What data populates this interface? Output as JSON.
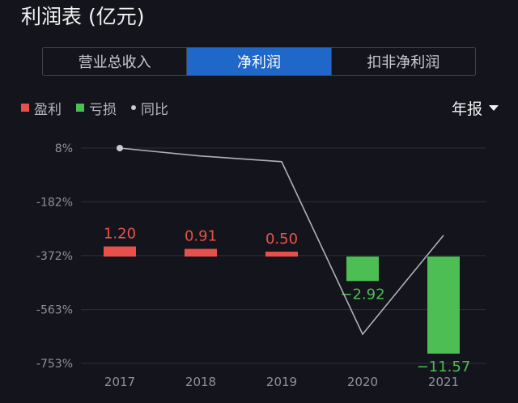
{
  "header": {
    "title": "利润表 (亿元)"
  },
  "tabs": [
    {
      "label": "营业总收入",
      "active": false
    },
    {
      "label": "净利润",
      "active": true
    },
    {
      "label": "扣非净利润",
      "active": false
    }
  ],
  "legend": {
    "profit": "盈利",
    "loss": "亏损",
    "yoy": "同比"
  },
  "period_selector": {
    "label": "年报"
  },
  "colors": {
    "profit": "#e8514b",
    "loss": "#4cbe53",
    "line": "#aeb0ba",
    "active_tab": "#1f67c8"
  },
  "chart_data": {
    "type": "bar",
    "categories": [
      "2017",
      "2018",
      "2019",
      "2020",
      "2021"
    ],
    "series": [
      {
        "name": "净利润",
        "values": [
          1.2,
          0.91,
          0.5,
          -2.92,
          -11.57
        ],
        "value_labels": [
          "1.20",
          "0.91",
          "0.50",
          "−2.92",
          "−11.57"
        ]
      },
      {
        "name": "同比",
        "values": [
          8,
          -20,
          -40,
          -650,
          -300
        ]
      }
    ],
    "y_tick_labels": [
      "8%",
      "-182%",
      "-372%",
      "-563%",
      "-753%"
    ],
    "y_ticks": [
      8,
      -182,
      -372,
      -563,
      -753
    ]
  }
}
